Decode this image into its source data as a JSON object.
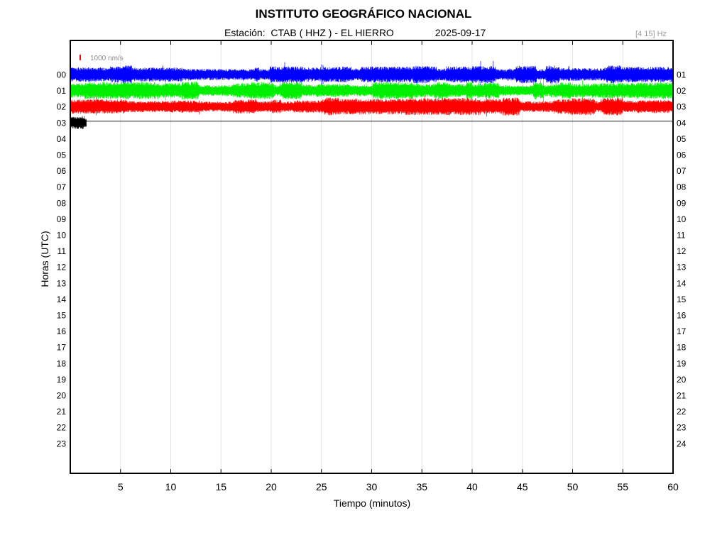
{
  "header": {
    "title": "INSTITUTO GEOGRÁFICO NACIONAL",
    "station_prefix": "Estación:",
    "station": "CTAB ( HHZ ) - EL HIERRO",
    "date": "2025-09-17",
    "filter": "[4 15] Hz"
  },
  "chart_data": {
    "type": "line",
    "title": "INSTITUTO GEOGRÁFICO NACIONAL",
    "xlabel": "Tiempo (minutos)",
    "ylabel": "Horas (UTC)",
    "xlim": [
      0,
      60
    ],
    "x_ticks": [
      5,
      10,
      15,
      20,
      25,
      30,
      35,
      40,
      45,
      50,
      55,
      60
    ],
    "y_ticks_left": [
      "00",
      "01",
      "02",
      "03",
      "04",
      "05",
      "06",
      "07",
      "08",
      "09",
      "10",
      "11",
      "12",
      "13",
      "14",
      "15",
      "16",
      "17",
      "18",
      "19",
      "20",
      "21",
      "22",
      "23"
    ],
    "y_ticks_right": [
      "01",
      "02",
      "03",
      "04",
      "05",
      "06",
      "07",
      "08",
      "09",
      "10",
      "11",
      "12",
      "13",
      "14",
      "15",
      "16",
      "17",
      "18",
      "19",
      "20",
      "21",
      "22",
      "23",
      "24"
    ],
    "scale_label": "1000 nm/s",
    "scale_color": "#ff0000",
    "grid": "vertical",
    "series": [
      {
        "hour": 0,
        "color": "#0000ff",
        "start_min": 0,
        "end_min": 60,
        "amplitude": 0.45
      },
      {
        "hour": 1,
        "color": "#00ee00",
        "start_min": 0,
        "end_min": 60,
        "amplitude": 0.45
      },
      {
        "hour": 2,
        "color": "#ff0000",
        "start_min": 0,
        "end_min": 60,
        "amplitude": 0.45
      },
      {
        "hour": 3,
        "color": "#000000",
        "start_min": 0,
        "end_min": 1.6,
        "amplitude": 0.4
      }
    ]
  }
}
